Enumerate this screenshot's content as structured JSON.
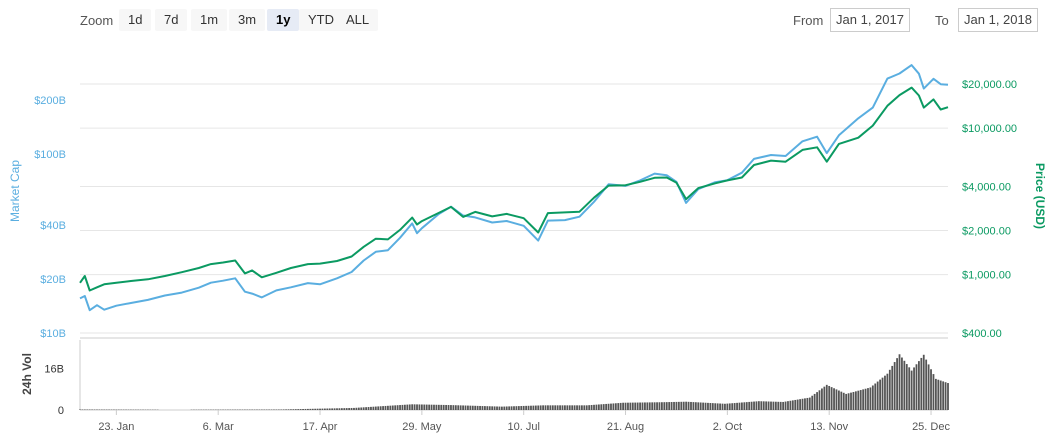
{
  "toolbar": {
    "zoom_label": "Zoom",
    "zoom_buttons": [
      "1d",
      "7d",
      "1m",
      "3m",
      "1y",
      "YTD",
      "ALL"
    ],
    "active_zoom": "1y",
    "from_label": "From",
    "from_value": "Jan 1, 2017",
    "to_label": "To",
    "to_value": "Jan 1, 2018"
  },
  "colors": {
    "market_cap": "#5aaee0",
    "price": "#0b9a62",
    "volume": "#555555",
    "grid": "#e6e6e6"
  },
  "chart_data": [
    {
      "type": "line",
      "x_ticks": [
        "23. Jan",
        "6. Mar",
        "17. Apr",
        "29. May",
        "10. Jul",
        "21. Aug",
        "2. Oct",
        "13. Nov",
        "25. Dec"
      ],
      "x_range": [
        "2017-01-08",
        "2018-01-01"
      ],
      "y_left": {
        "label": "Market Cap",
        "scale": "log",
        "ticks": [
          "$10B",
          "$20B",
          "$40B",
          "$100B",
          "$200B"
        ],
        "tick_values": [
          10,
          20,
          40,
          100,
          200
        ],
        "units": "USD billions"
      },
      "y_right": {
        "label": "Price (USD)",
        "scale": "log",
        "ticks": [
          "$400.00",
          "$1,000.00",
          "$2,000.00",
          "$4,000.00",
          "$10,000.00",
          "$20,000.00"
        ],
        "tick_values": [
          400,
          1000,
          2000,
          4000,
          10000,
          20000
        ]
      },
      "grid": true,
      "series": [
        {
          "name": "Market Cap",
          "axis": "left",
          "points": [
            [
              "2017-01-08",
              15.6
            ],
            [
              "2017-01-10",
              16.1
            ],
            [
              "2017-01-12",
              13.4
            ],
            [
              "2017-01-15",
              14.3
            ],
            [
              "2017-01-18",
              13.5
            ],
            [
              "2017-01-23",
              14.2
            ],
            [
              "2017-01-29",
              14.7
            ],
            [
              "2017-02-05",
              15.3
            ],
            [
              "2017-02-12",
              16.2
            ],
            [
              "2017-02-19",
              16.8
            ],
            [
              "2017-02-26",
              17.9
            ],
            [
              "2017-03-03",
              19.1
            ],
            [
              "2017-03-08",
              19.6
            ],
            [
              "2017-03-13",
              20.2
            ],
            [
              "2017-03-17",
              17.0
            ],
            [
              "2017-03-20",
              16.6
            ],
            [
              "2017-03-24",
              15.8
            ],
            [
              "2017-03-30",
              17.3
            ],
            [
              "2017-04-05",
              18.0
            ],
            [
              "2017-04-12",
              19.0
            ],
            [
              "2017-04-17",
              18.7
            ],
            [
              "2017-04-24",
              20.2
            ],
            [
              "2017-04-30",
              21.9
            ],
            [
              "2017-05-05",
              25.4
            ],
            [
              "2017-05-10",
              28.4
            ],
            [
              "2017-05-15",
              29.0
            ],
            [
              "2017-05-20",
              34.0
            ],
            [
              "2017-05-25",
              40.9
            ],
            [
              "2017-05-27",
              36.1
            ],
            [
              "2017-05-29",
              38.5
            ],
            [
              "2017-06-05",
              46.2
            ],
            [
              "2017-06-10",
              50.7
            ],
            [
              "2017-06-15",
              45.3
            ],
            [
              "2017-06-20",
              44.2
            ],
            [
              "2017-06-27",
              41.4
            ],
            [
              "2017-07-03",
              42.2
            ],
            [
              "2017-07-10",
              39.7
            ],
            [
              "2017-07-16",
              32.8
            ],
            [
              "2017-07-20",
              42.4
            ],
            [
              "2017-07-27",
              42.7
            ],
            [
              "2017-08-02",
              44.6
            ],
            [
              "2017-08-08",
              54.0
            ],
            [
              "2017-08-14",
              67.7
            ],
            [
              "2017-08-21",
              66.3
            ],
            [
              "2017-08-27",
              71.1
            ],
            [
              "2017-09-02",
              77.6
            ],
            [
              "2017-09-07",
              76.1
            ],
            [
              "2017-09-11",
              69.9
            ],
            [
              "2017-09-15",
              53.3
            ],
            [
              "2017-09-20",
              63.6
            ],
            [
              "2017-09-27",
              69.5
            ],
            [
              "2017-10-02",
              71.3
            ],
            [
              "2017-10-08",
              78.5
            ],
            [
              "2017-10-13",
              93.8
            ],
            [
              "2017-10-20",
              98.6
            ],
            [
              "2017-10-26",
              97.3
            ],
            [
              "2017-11-02",
              117.6
            ],
            [
              "2017-11-08",
              124.8
            ],
            [
              "2017-11-12",
              101.1
            ],
            [
              "2017-11-17",
              127.1
            ],
            [
              "2017-11-25",
              158.0
            ],
            [
              "2017-12-01",
              181.3
            ],
            [
              "2017-12-07",
              263.4
            ],
            [
              "2017-12-12",
              281.2
            ],
            [
              "2017-12-17",
              313.1
            ],
            [
              "2017-12-20",
              280.6
            ],
            [
              "2017-12-22",
              231.7
            ],
            [
              "2017-12-26",
              262.5
            ],
            [
              "2017-12-29",
              245.0
            ],
            [
              "2018-01-01",
              243.3
            ]
          ]
        },
        {
          "name": "Price (USD)",
          "axis": "right",
          "points": [
            [
              "2017-01-08",
              880
            ],
            [
              "2017-01-10",
              980
            ],
            [
              "2017-01-12",
              780
            ],
            [
              "2017-01-15",
              820
            ],
            [
              "2017-01-18",
              860
            ],
            [
              "2017-01-23",
              880
            ],
            [
              "2017-01-29",
              905
            ],
            [
              "2017-02-05",
              930
            ],
            [
              "2017-02-12",
              980
            ],
            [
              "2017-02-19",
              1040
            ],
            [
              "2017-02-26",
              1110
            ],
            [
              "2017-03-03",
              1180
            ],
            [
              "2017-03-08",
              1210
            ],
            [
              "2017-03-13",
              1250
            ],
            [
              "2017-03-17",
              1020
            ],
            [
              "2017-03-20",
              1070
            ],
            [
              "2017-03-24",
              960
            ],
            [
              "2017-03-30",
              1030
            ],
            [
              "2017-04-05",
              1110
            ],
            [
              "2017-04-12",
              1180
            ],
            [
              "2017-04-17",
              1190
            ],
            [
              "2017-04-24",
              1240
            ],
            [
              "2017-04-30",
              1330
            ],
            [
              "2017-05-05",
              1550
            ],
            [
              "2017-05-10",
              1760
            ],
            [
              "2017-05-15",
              1740
            ],
            [
              "2017-05-20",
              2020
            ],
            [
              "2017-05-25",
              2450
            ],
            [
              "2017-05-27",
              2200
            ],
            [
              "2017-05-29",
              2320
            ],
            [
              "2017-06-05",
              2640
            ],
            [
              "2017-06-10",
              2900
            ],
            [
              "2017-06-15",
              2480
            ],
            [
              "2017-06-20",
              2680
            ],
            [
              "2017-06-27",
              2500
            ],
            [
              "2017-07-03",
              2600
            ],
            [
              "2017-07-10",
              2430
            ],
            [
              "2017-07-16",
              1940
            ],
            [
              "2017-07-20",
              2630
            ],
            [
              "2017-07-27",
              2660
            ],
            [
              "2017-08-02",
              2690
            ],
            [
              "2017-08-08",
              3350
            ],
            [
              "2017-08-14",
              4050
            ],
            [
              "2017-08-21",
              4080
            ],
            [
              "2017-08-27",
              4300
            ],
            [
              "2017-09-02",
              4580
            ],
            [
              "2017-09-07",
              4600
            ],
            [
              "2017-09-11",
              4250
            ],
            [
              "2017-09-15",
              3280
            ],
            [
              "2017-09-20",
              3900
            ],
            [
              "2017-09-27",
              4200
            ],
            [
              "2017-10-02",
              4400
            ],
            [
              "2017-10-08",
              4600
            ],
            [
              "2017-10-13",
              5600
            ],
            [
              "2017-10-20",
              6000
            ],
            [
              "2017-10-26",
              5900
            ],
            [
              "2017-11-02",
              7100
            ],
            [
              "2017-11-08",
              7400
            ],
            [
              "2017-11-12",
              5900
            ],
            [
              "2017-11-17",
              7800
            ],
            [
              "2017-11-25",
              8600
            ],
            [
              "2017-12-01",
              10400
            ],
            [
              "2017-12-07",
              14200
            ],
            [
              "2017-12-12",
              16800
            ],
            [
              "2017-12-17",
              18900
            ],
            [
              "2017-12-20",
              16700
            ],
            [
              "2017-12-22",
              13800
            ],
            [
              "2017-12-26",
              15700
            ],
            [
              "2017-12-29",
              13400
            ],
            [
              "2018-01-01",
              13900
            ]
          ]
        }
      ]
    },
    {
      "type": "bar",
      "y_label": "24h Vol",
      "y_ticks": [
        "0",
        "16B"
      ],
      "tick_values": [
        0,
        16
      ],
      "units": "USD billions",
      "x_range": [
        "2017-01-08",
        "2018-01-01"
      ],
      "values_by_date": [
        [
          "2017-01-08",
          0.2
        ],
        [
          "2017-02-15",
          0.1
        ],
        [
          "2017-03-10",
          0.15
        ],
        [
          "2017-04-01",
          0.2
        ],
        [
          "2017-05-01",
          0.8
        ],
        [
          "2017-05-25",
          2.2
        ],
        [
          "2017-06-10",
          1.9
        ],
        [
          "2017-07-01",
          1.3
        ],
        [
          "2017-07-18",
          1.8
        ],
        [
          "2017-08-05",
          1.8
        ],
        [
          "2017-08-20",
          2.8
        ],
        [
          "2017-09-05",
          3.0
        ],
        [
          "2017-09-15",
          3.2
        ],
        [
          "2017-10-01",
          2.4
        ],
        [
          "2017-10-15",
          3.4
        ],
        [
          "2017-10-25",
          3.1
        ],
        [
          "2017-11-05",
          4.8
        ],
        [
          "2017-11-12",
          9.7
        ],
        [
          "2017-11-20",
          6.2
        ],
        [
          "2017-11-30",
          8.7
        ],
        [
          "2017-12-07",
          14.0
        ],
        [
          "2017-12-12",
          21.5
        ],
        [
          "2017-12-17",
          15.2
        ],
        [
          "2017-12-22",
          21.3
        ],
        [
          "2017-12-27",
          12.0
        ],
        [
          "2018-01-01",
          10.4
        ]
      ]
    }
  ]
}
